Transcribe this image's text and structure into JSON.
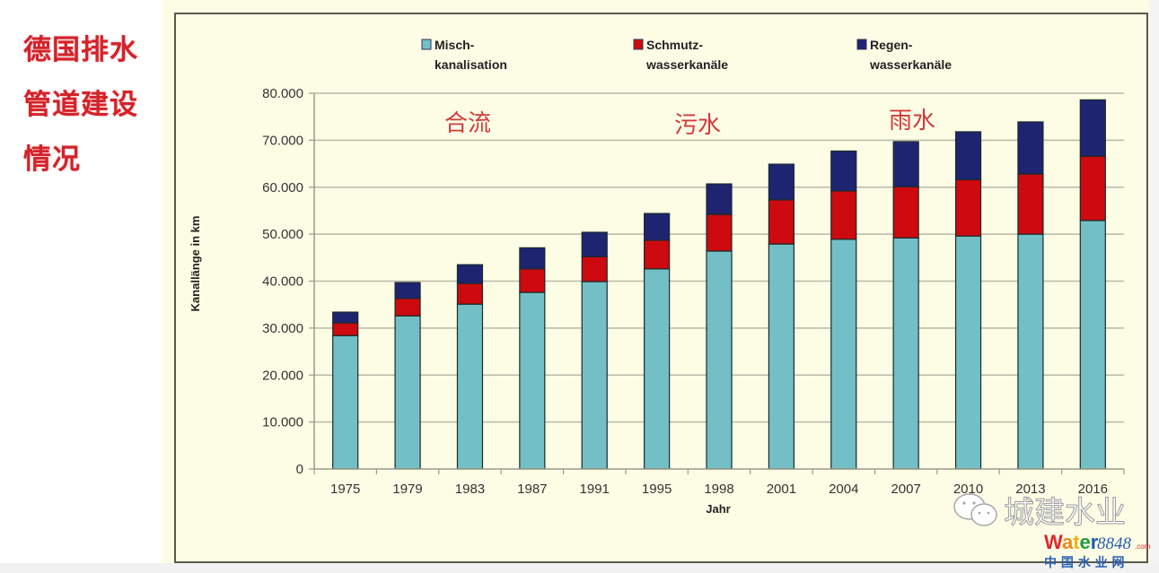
{
  "side_title": {
    "lines": [
      "德国排水",
      "管道建设",
      "情况"
    ],
    "color": "#d4222a"
  },
  "watermark": {
    "account": "城建水业",
    "logo_text": "Water",
    "logo_number": "8848",
    "logo_domain": ".com",
    "logo_sub": "中 国 水 业 网"
  },
  "chart_data": {
    "type": "bar",
    "stacked": true,
    "title": "",
    "xlabel": "Jahr",
    "ylabel": "Kanallänge in km",
    "ylim": [
      0,
      80000
    ],
    "yticks": [
      0,
      10000,
      20000,
      30000,
      40000,
      50000,
      60000,
      70000,
      80000
    ],
    "ytick_labels": [
      "0",
      "10.000",
      "20.000",
      "30.000",
      "40.000",
      "50.000",
      "60.000",
      "70.000",
      "80.000"
    ],
    "grid": true,
    "legend_position": "top",
    "categories": [
      "1975",
      "1979",
      "1983",
      "1987",
      "1991",
      "1995",
      "1998",
      "2001",
      "2004",
      "2007",
      "2010",
      "2013",
      "2016"
    ],
    "series": [
      {
        "name": "Misch-\nkanalisation",
        "legend_lines": [
          "Misch-",
          "kanalisation"
        ],
        "color": "#72c0c6",
        "values": [
          28400,
          32600,
          35100,
          37600,
          39900,
          42600,
          46400,
          47900,
          48900,
          49200,
          49600,
          50000,
          52900
        ]
      },
      {
        "name": "Schmutz-\nwasserkanäle",
        "legend_lines": [
          "Schmutz-",
          "wasserkanäle"
        ],
        "color": "#cc0a0f",
        "values": [
          2700,
          3700,
          4400,
          5000,
          5300,
          6100,
          7800,
          9400,
          10300,
          10900,
          12000,
          12800,
          13700
        ]
      },
      {
        "name": "Regen-\nwasserkanäle",
        "legend_lines": [
          "Regen-",
          "wasserkanäle"
        ],
        "color": "#1f2470",
        "values": [
          2300,
          3400,
          4000,
          4500,
          5200,
          5700,
          6500,
          7600,
          8500,
          9600,
          10200,
          11100,
          12000
        ]
      }
    ],
    "annotations": [
      {
        "text": "合流",
        "near_category": "1983"
      },
      {
        "text": "污水",
        "near_category": "1998"
      },
      {
        "text": "雨水",
        "near_category": "2007"
      }
    ]
  }
}
